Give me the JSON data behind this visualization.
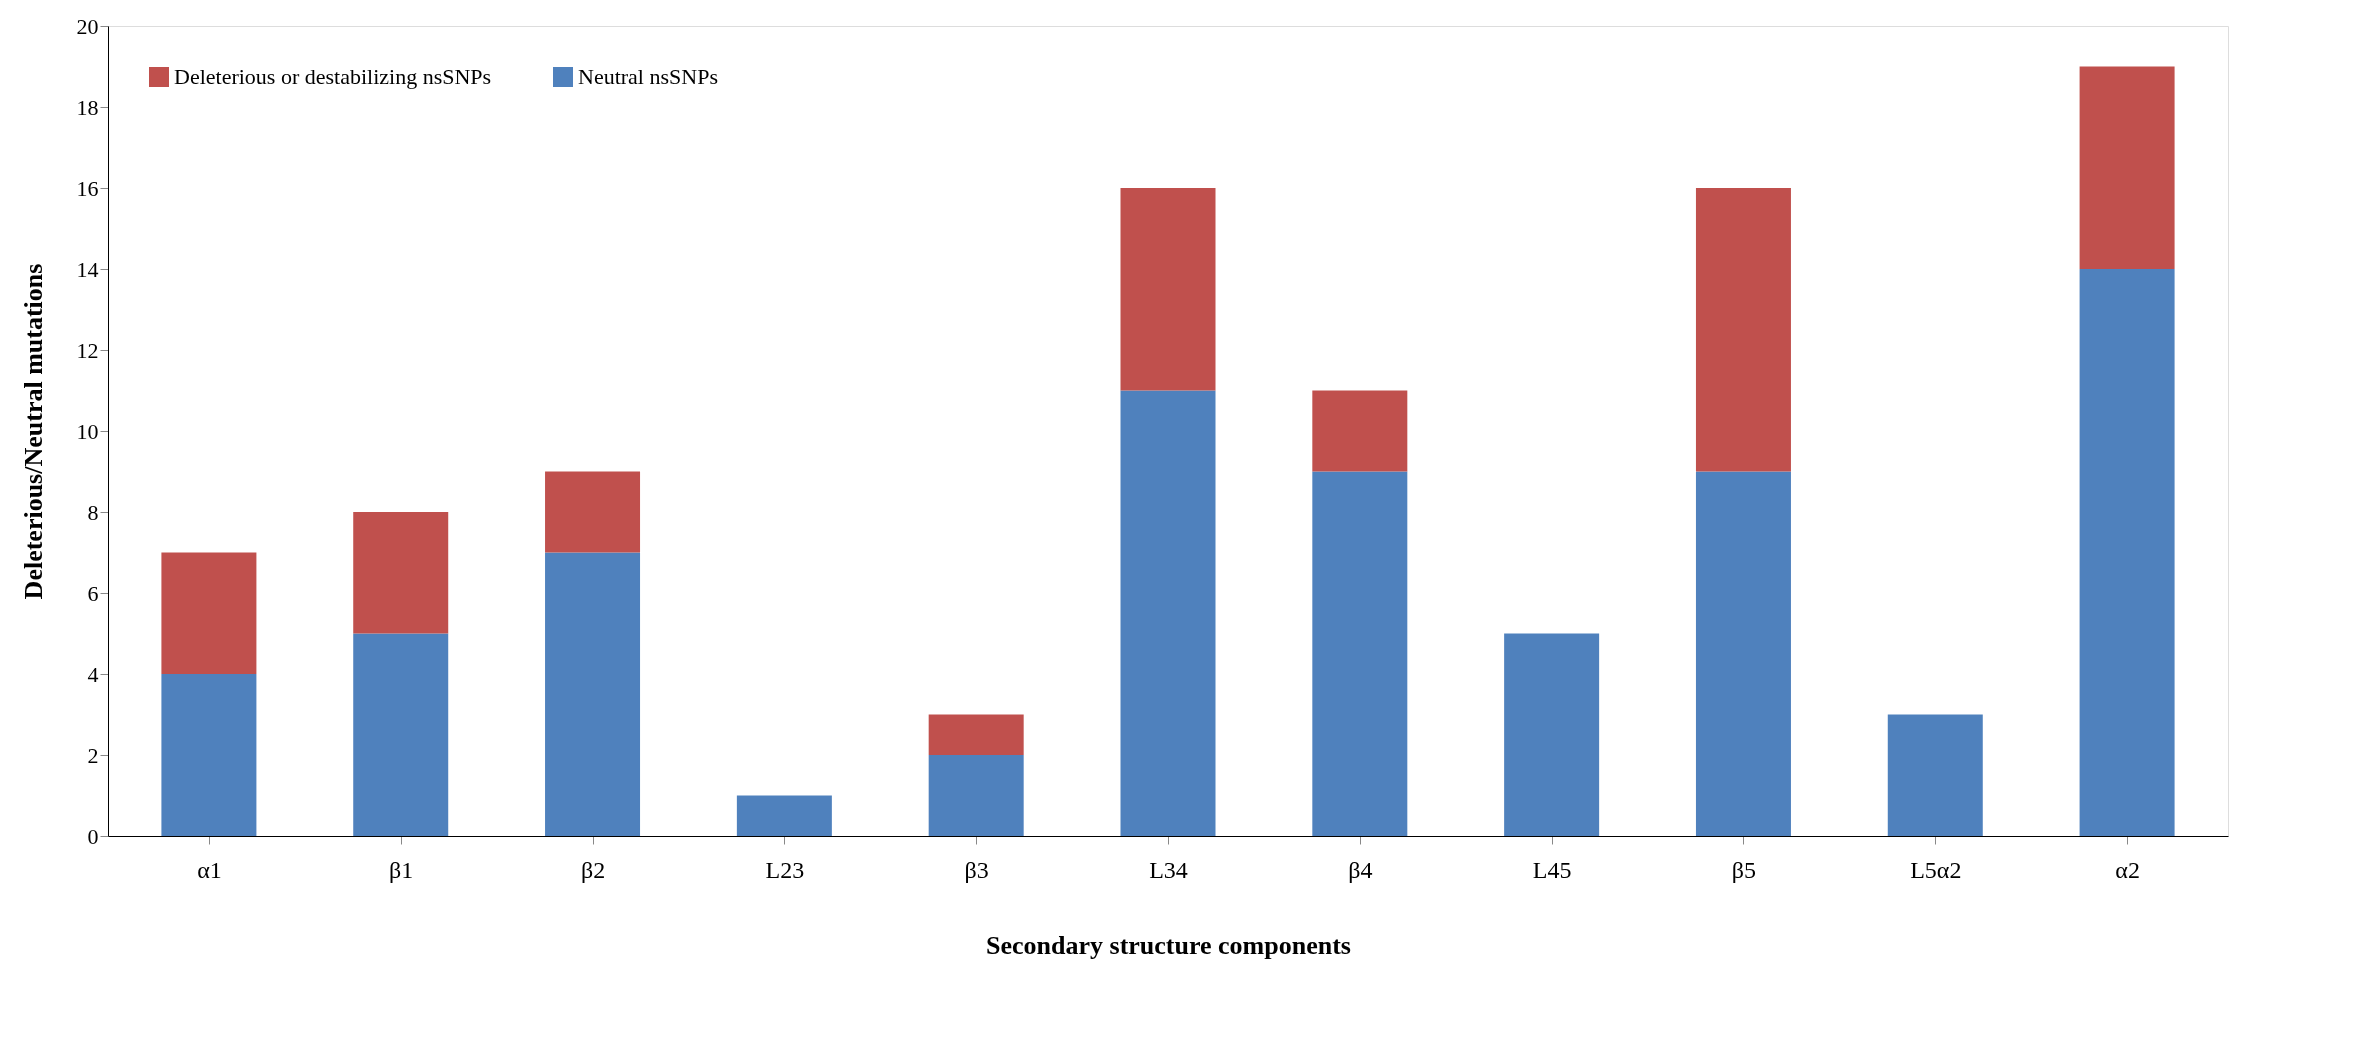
{
  "chart_data": {
    "type": "bar",
    "stacked": true,
    "xlabel": "Secondary structure components",
    "ylabel": "Deleterious/Neutral mutations",
    "categories": [
      "α1",
      "β1",
      "β2",
      "L23",
      "β3",
      "L34",
      "β4",
      "L45",
      "β5",
      "L5α2",
      "α2"
    ],
    "series": [
      {
        "name": "Neutral nsSNPs",
        "color": "#4f81bd",
        "values": [
          4,
          5,
          7,
          1,
          2,
          11,
          9,
          5,
          9,
          3,
          14
        ]
      },
      {
        "name": "Deleterious or destabilizing nsSNPs",
        "color": "#c0504d",
        "values": [
          3,
          3,
          2,
          0,
          1,
          5,
          2,
          0,
          7,
          0,
          5
        ]
      }
    ],
    "ylim": [
      0,
      20
    ],
    "yticks": [
      0,
      2,
      4,
      6,
      8,
      10,
      12,
      14,
      16,
      18,
      20
    ],
    "grid": false,
    "legend": "top left"
  }
}
